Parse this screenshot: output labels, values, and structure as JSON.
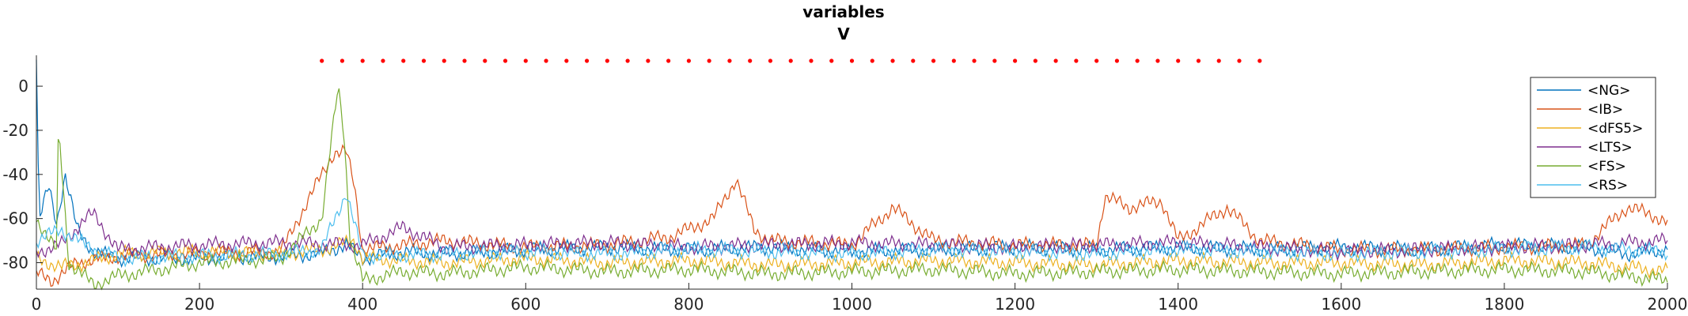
{
  "chart_data": {
    "type": "line",
    "title": "variables",
    "subtitle": "V",
    "xlabel": "",
    "ylabel": "",
    "xlim": [
      0,
      2000
    ],
    "ylim": [
      -92,
      14
    ],
    "xticks": [
      0,
      200,
      400,
      600,
      800,
      1000,
      1200,
      1400,
      1600,
      1800,
      2000
    ],
    "yticks": [
      0,
      -20,
      -40,
      -60,
      -80
    ],
    "grid": false,
    "legend_position": "top-right",
    "series": [
      {
        "name": "<NG>",
        "color": "#0072BD",
        "x": [
          0,
          2,
          4,
          8,
          15,
          25,
          35,
          50,
          70,
          100,
          200,
          300,
          345,
          380,
          400,
          450,
          500,
          600,
          700,
          800,
          900,
          1000,
          1100,
          1200,
          1300,
          1400,
          1500,
          1600,
          1700,
          1800,
          1900,
          1950,
          2000
        ],
        "y": [
          12,
          -35,
          -60,
          -55,
          -45,
          -62,
          -40,
          -65,
          -75,
          -78,
          -78,
          -77,
          -76,
          -72,
          -78,
          -75,
          -76,
          -74,
          -73,
          -74,
          -73,
          -75,
          -74,
          -73,
          -74,
          -73,
          -74,
          -73,
          -74,
          -72,
          -73,
          -76,
          -74
        ]
      },
      {
        "name": "<IB>",
        "color": "#D95319",
        "x": [
          0,
          20,
          50,
          100,
          200,
          300,
          350,
          365,
          380,
          390,
          400,
          450,
          500,
          600,
          700,
          780,
          830,
          858,
          880,
          900,
          1000,
          1050,
          1100,
          1200,
          1300,
          1310,
          1340,
          1380,
          1400,
          1460,
          1500,
          1600,
          1700,
          1800,
          1900,
          1950,
          1980,
          2000
        ],
        "y": [
          -85,
          -88,
          -80,
          -77,
          -76,
          -75,
          -40,
          -30,
          -30,
          -45,
          -74,
          -72,
          -70,
          -73,
          -72,
          -68,
          -60,
          -42,
          -65,
          -70,
          -72,
          -55,
          -70,
          -72,
          -72,
          -50,
          -55,
          -52,
          -70,
          -55,
          -70,
          -74,
          -74,
          -73,
          -72,
          -55,
          -58,
          -62
        ]
      },
      {
        "name": "<dFS5>",
        "color": "#EDB120",
        "x": [
          0,
          30,
          60,
          100,
          200,
          300,
          350,
          390,
          400,
          500,
          600,
          700,
          800,
          900,
          1000,
          1100,
          1200,
          1300,
          1400,
          1500,
          1600,
          1700,
          1800,
          1900,
          2000
        ],
        "y": [
          -78,
          -82,
          -80,
          -76,
          -75,
          -76,
          -74,
          -70,
          -78,
          -80,
          -78,
          -80,
          -79,
          -81,
          -80,
          -79,
          -80,
          -81,
          -79,
          -80,
          -80,
          -81,
          -79,
          -80,
          -84
        ]
      },
      {
        "name": "<LTS>",
        "color": "#7E2F8E",
        "x": [
          0,
          30,
          60,
          70,
          100,
          200,
          300,
          400,
          450,
          500,
          600,
          700,
          800,
          900,
          1000,
          1100,
          1200,
          1300,
          1400,
          1500,
          1600,
          1700,
          1800,
          1900,
          2000
        ],
        "y": [
          -75,
          -72,
          -60,
          -58,
          -74,
          -72,
          -71,
          -72,
          -64,
          -73,
          -72,
          -71,
          -73,
          -72,
          -71,
          -72,
          -73,
          -72,
          -71,
          -73,
          -75,
          -74,
          -73,
          -72,
          -70
        ]
      },
      {
        "name": "<FS>",
        "color": "#77AC30",
        "x": [
          0,
          25,
          27,
          40,
          70,
          100,
          200,
          300,
          350,
          370,
          377,
          385,
          400,
          450,
          500,
          600,
          700,
          800,
          900,
          1000,
          1100,
          1200,
          1300,
          1400,
          1500,
          1600,
          1700,
          1800,
          1900,
          2000
        ],
        "y": [
          -60,
          -75,
          -18,
          -80,
          -90,
          -86,
          -80,
          -78,
          -60,
          0,
          -20,
          -70,
          -88,
          -84,
          -85,
          -82,
          -84,
          -83,
          -85,
          -84,
          -83,
          -85,
          -84,
          -83,
          -84,
          -85,
          -84,
          -83,
          -84,
          -88
        ]
      },
      {
        "name": "<RS>",
        "color": "#4DBEEE",
        "x": [
          0,
          30,
          60,
          100,
          200,
          300,
          350,
          380,
          400,
          500,
          600,
          700,
          800,
          900,
          1000,
          1100,
          1200,
          1300,
          1400,
          1500,
          1600,
          1700,
          1800,
          1900,
          2000
        ],
        "y": [
          -70,
          -65,
          -72,
          -78,
          -77,
          -76,
          -74,
          -48,
          -77,
          -76,
          -75,
          -76,
          -74,
          -75,
          -76,
          -74,
          -75,
          -76,
          -74,
          -75,
          -76,
          -75,
          -74,
          -73,
          -75
        ]
      }
    ],
    "markers": {
      "color": "#FF0000",
      "y": 11.5,
      "x": [
        350,
        375,
        400,
        425,
        450,
        475,
        500,
        525,
        550,
        575,
        600,
        625,
        650,
        675,
        700,
        725,
        750,
        775,
        800,
        825,
        850,
        875,
        900,
        925,
        950,
        975,
        1000,
        1025,
        1050,
        1075,
        1100,
        1125,
        1150,
        1175,
        1200,
        1225,
        1250,
        1275,
        1300,
        1325,
        1350,
        1375,
        1400,
        1425,
        1450,
        1475,
        1500
      ]
    }
  }
}
